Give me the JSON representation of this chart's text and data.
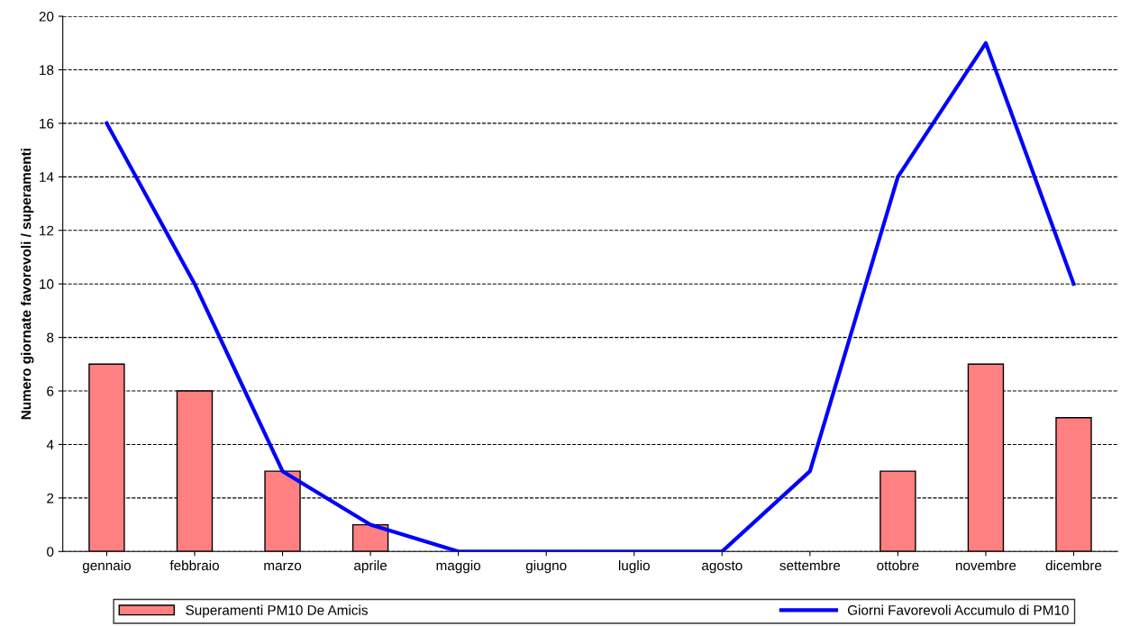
{
  "chart_data": {
    "type": "bar",
    "ylabel": "Numero giornate favorevoli / superamenti",
    "categories": [
      "gennaio",
      "febbraio",
      "marzo",
      "aprile",
      "maggio",
      "giugno",
      "luglio",
      "agosto",
      "settembre",
      "ottobre",
      "novembre",
      "dicembre"
    ],
    "series": [
      {
        "name": "Superamenti PM10 De Amicis",
        "color": "#ff8080",
        "values": [
          7,
          6,
          3,
          1,
          0,
          0,
          0,
          0,
          0,
          3,
          7,
          5
        ]
      },
      {
        "name": "Giorni Favorevoli Accumulo di PM10",
        "type": "line",
        "color": "#0000ff",
        "values": [
          16,
          10,
          3,
          1,
          0,
          0,
          0,
          0,
          3,
          14,
          19,
          10
        ]
      }
    ],
    "ylim": [
      0,
      20
    ],
    "yticks": [
      0,
      2,
      4,
      6,
      8,
      10,
      12,
      14,
      16,
      18,
      20
    ],
    "grid": "y",
    "legend": "bottom",
    "marker": "none",
    "line_style": "solid"
  }
}
